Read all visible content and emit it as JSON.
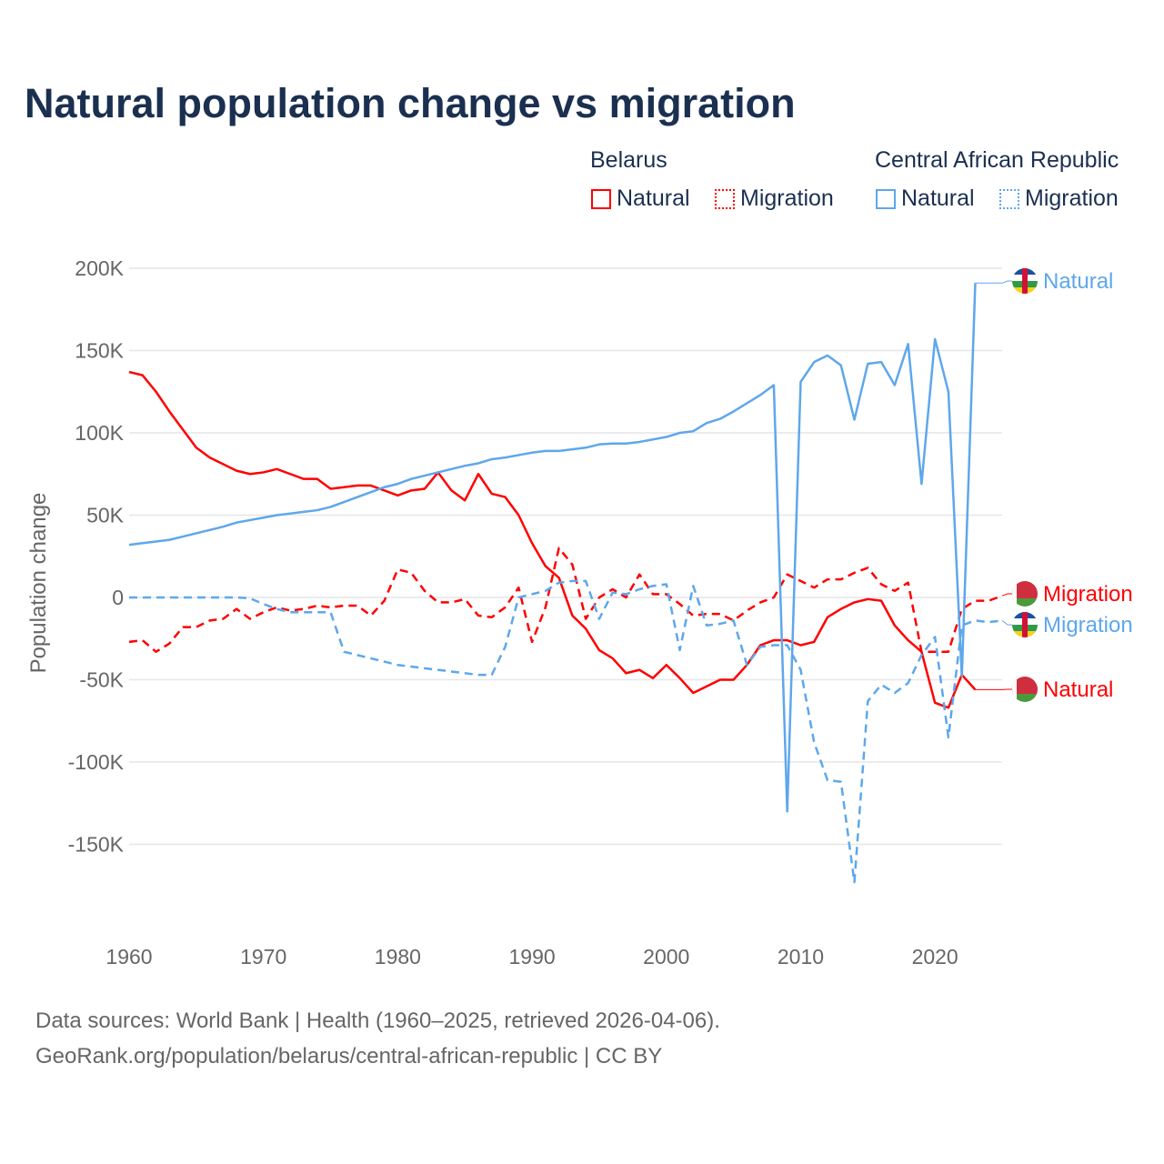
{
  "title": "Natural population change vs migration",
  "legend": {
    "groups": [
      {
        "name": "Belarus",
        "color": "#ff0000",
        "items": [
          "Natural",
          "Migration"
        ]
      },
      {
        "name": "Central African Republic",
        "color": "#5ea7ec",
        "items": [
          "Natural",
          "Migration"
        ]
      }
    ]
  },
  "footer": {
    "line1": "Data sources: World Bank | Health (1960–2025, retrieved 2026-04-06).",
    "line2": "GeoRank.org/population/belarus/central-african-republic | CC BY"
  },
  "chart_data": {
    "type": "line",
    "title": "Natural population change vs migration",
    "xlabel": "",
    "ylabel": "Population change",
    "xlim": [
      1960,
      2025
    ],
    "ylim": [
      -200000,
      200000
    ],
    "x_ticks": [
      1960,
      1970,
      1980,
      1990,
      2000,
      2010,
      2020
    ],
    "y_ticks": [
      200000,
      150000,
      100000,
      50000,
      0,
      -50000,
      -100000,
      -150000
    ],
    "y_tick_labels": [
      "200K",
      "150K",
      "100K",
      "50K",
      "0",
      "-50K",
      "-100K",
      "-150K"
    ],
    "grid": true,
    "legend_position": "top-right",
    "series": [
      {
        "name": "Belarus Natural",
        "country": "Belarus",
        "kind": "Natural",
        "color": "#ff0000",
        "dash": "solid",
        "start": 1960,
        "values_k": [
          137,
          135,
          125,
          113,
          102,
          91,
          85,
          81,
          77,
          75,
          76,
          78,
          75,
          72,
          72,
          66,
          67,
          68,
          68,
          65,
          62,
          65,
          66,
          76,
          65,
          59,
          75,
          63,
          61,
          50,
          33,
          19,
          12,
          -11,
          -19,
          -32,
          -37,
          -46,
          -44,
          -49,
          -41,
          -49,
          -58,
          -54,
          -50,
          -50,
          -41,
          -29,
          -26,
          -26,
          -29,
          -27,
          -12,
          -7,
          -3,
          -1,
          -2,
          -17,
          -26,
          -33,
          -64,
          -67,
          -47,
          -56
        ],
        "end_label": "Natural"
      },
      {
        "name": "Belarus Migration",
        "country": "Belarus",
        "kind": "Migration",
        "color": "#ff0000",
        "dash": "dashed",
        "start": 1960,
        "values_k": [
          -27,
          -26,
          -33,
          -28,
          -18,
          -18,
          -14,
          -13,
          -7,
          -13,
          -9,
          -6,
          -8,
          -7,
          -5,
          -6,
          -5,
          -5,
          -11,
          -2,
          17,
          15,
          4,
          -3,
          -3,
          -1,
          -11,
          -12,
          -6,
          6,
          -27,
          -6,
          30,
          20,
          -13,
          0,
          5,
          0,
          14,
          2,
          2,
          -4,
          -11,
          -10,
          -10,
          -14,
          -8,
          -3,
          0,
          14,
          10,
          6,
          11,
          11,
          15,
          18,
          8,
          4,
          9,
          -33,
          -33,
          -33,
          -7,
          -2,
          -2,
          1
        ],
        "end_label": "Migration"
      },
      {
        "name": "Central African Republic Natural",
        "country": "Central African Republic",
        "kind": "Natural",
        "color": "#5ea7ec",
        "dash": "solid",
        "start": 1960,
        "values_k": [
          32,
          33,
          34,
          35,
          37,
          39,
          41,
          43,
          45.5,
          47,
          48.5,
          50,
          51,
          52,
          53,
          55,
          58,
          61,
          64,
          67,
          69,
          72,
          74,
          76,
          78,
          80,
          81.5,
          84,
          85,
          86.5,
          88,
          89,
          89,
          90,
          91,
          93,
          93.5,
          93.5,
          94.5,
          96,
          97.5,
          100,
          101,
          106,
          108.5,
          113,
          118,
          123,
          129,
          -130,
          131,
          143,
          147,
          141,
          108,
          142,
          143,
          129,
          154,
          69,
          157,
          125,
          -48,
          191
        ],
        "end_label": "Natural"
      },
      {
        "name": "Central African Republic Migration",
        "country": "Central African Republic",
        "kind": "Migration",
        "color": "#5ea7ec",
        "dash": "dashed",
        "start": 1960,
        "values_k": [
          0,
          0,
          0,
          0,
          0,
          0,
          0,
          0,
          0,
          -0.5,
          -4,
          -7,
          -9,
          -9,
          -9,
          -9,
          -33,
          -35,
          -37,
          -39,
          -41,
          -42,
          -43,
          -44,
          -45,
          -46,
          -47,
          -47,
          -30,
          0,
          2,
          4,
          9,
          10,
          10,
          -13,
          3,
          2,
          5,
          7,
          8,
          -32,
          7,
          -17,
          -16,
          -14,
          -41,
          -30,
          -29,
          -29,
          -44,
          -88,
          -111,
          -112,
          -173,
          -63,
          -53,
          -58,
          -52,
          -35,
          -24,
          -85,
          -17,
          -14,
          -15,
          -14
        ],
        "end_label": "Migration"
      }
    ]
  }
}
